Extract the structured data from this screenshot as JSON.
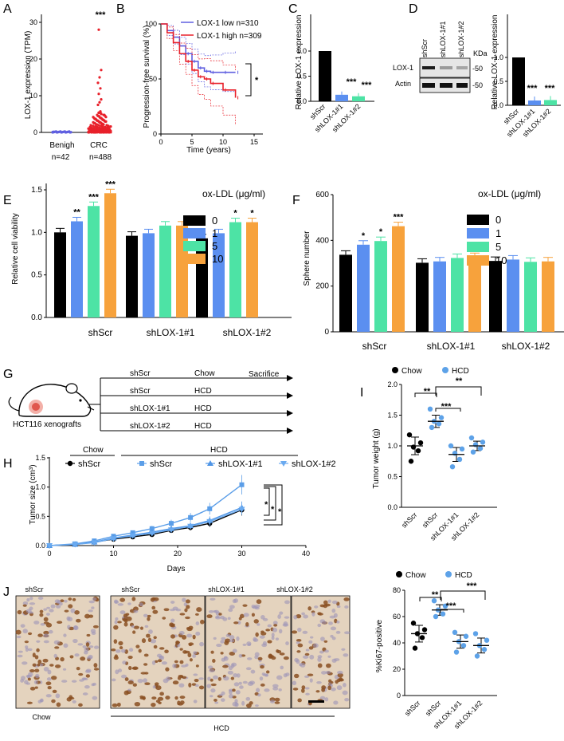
{
  "panels": {
    "A": "A",
    "B": "B",
    "C": "C",
    "D": "D",
    "E": "E",
    "F": "F",
    "G": "G",
    "H": "H",
    "I": "I",
    "J": "J"
  },
  "colors": {
    "black": "#000000",
    "blue": "#5b8ff0",
    "green": "#4de3a5",
    "orange": "#f7a23c",
    "red": "#e8202a",
    "km_blue": "#5f5fe0",
    "dot_blue": "#5da2e8"
  },
  "panelA": {
    "ylabel": "LOX-1 expression (TPM)",
    "yticks": [
      "0",
      "10",
      "20",
      "30"
    ],
    "groups": [
      "Benigh",
      "CRC"
    ],
    "ns": [
      "n=42",
      "n=488"
    ],
    "sig": "***"
  },
  "panelB": {
    "ylabel": "Progression-free survival (%)",
    "xlabel": "Time (years)",
    "xticks": [
      "0",
      "5",
      "10",
      "15"
    ],
    "yticks": [
      "0",
      "50",
      "100"
    ],
    "legend": [
      "LOX-1 low n=310",
      "LOX-1 high n=309"
    ],
    "sig": "*"
  },
  "panelC": {
    "ylabel": "Relative LOX-1 expression",
    "yticks": [
      "0.0",
      "0.5",
      "1.0"
    ],
    "categories": [
      "shScr",
      "shLOX-1#1",
      "shLOX-1#2"
    ],
    "sigs": [
      "***",
      "***"
    ]
  },
  "panelD": {
    "lanes": [
      "shScr",
      "shLOX-1#1",
      "shLOX-1#2"
    ],
    "kda": "KDa",
    "bands": [
      "LOX-1",
      "Actin"
    ],
    "markers": [
      "-50",
      "-50"
    ],
    "ylabel": "Relative LOX-1 expression",
    "yticks": [
      "0.0",
      "0.5",
      "1.0"
    ],
    "sigs": [
      "***",
      "***"
    ]
  },
  "panelE": {
    "legend_title": "ox-LDL (μg/ml)",
    "legend": [
      "0",
      "1",
      "5",
      "10"
    ],
    "ylabel": "Relative cell viability",
    "yticks": [
      "0.0",
      "0.5",
      "1.0",
      "1.5"
    ],
    "groups": [
      "shScr",
      "shLOX-1#1",
      "shLOX-1#2"
    ]
  },
  "panelF": {
    "legend_title": "ox-LDL (μg/ml)",
    "legend": [
      "0",
      "1",
      "5",
      "10"
    ],
    "ylabel": "Sphere number",
    "yticks": [
      "0",
      "200",
      "400",
      "600"
    ],
    "groups": [
      "shScr",
      "shLOX-1#1",
      "shLOX-1#2"
    ]
  },
  "panelG": {
    "model": "HCT116 xenografts",
    "rows": [
      [
        "shScr",
        "Chow"
      ],
      [
        "shScr",
        "HCD"
      ],
      [
        "shLOX-1#1",
        "HCD"
      ],
      [
        "shLOX-1#2",
        "HCD"
      ]
    ],
    "end": "Sacrifice"
  },
  "panelH": {
    "ylabel": "Tumor size (cm³)",
    "xlabel": "Days",
    "xticks": [
      "0",
      "10",
      "20",
      "30",
      "40"
    ],
    "yticks": [
      "0.0",
      "0.5",
      "1.0",
      "1.5"
    ],
    "diet_chow": "Chow",
    "diet_hcd": "HCD",
    "legend": [
      "shScr",
      "shScr",
      "shLOX-1#1",
      "shLOX-1#2"
    ],
    "sigs": [
      "*",
      "*",
      "*"
    ]
  },
  "panelI": {
    "legend": [
      "Chow",
      "HCD"
    ],
    "ylabel": "Tumor weight (g)",
    "yticks": [
      "0.0",
      "0.5",
      "1.0",
      "1.5",
      "2.0"
    ],
    "categories": [
      "shScr",
      "shScr",
      "shLOX-1#1",
      "shLOX-1#2"
    ],
    "sigs": [
      "**",
      "***",
      "**"
    ]
  },
  "panelJ": {
    "columns": [
      "shScr",
      "shScr",
      "shLOX-1#1",
      "shLOX-1#2"
    ],
    "diet_chow": "Chow",
    "diet_hcd": "HCD"
  },
  "panelK": {
    "legend": [
      "Chow",
      "HCD"
    ],
    "ylabel": "%Ki67-positive",
    "yticks": [
      "0",
      "20",
      "40",
      "60",
      "80"
    ],
    "categories": [
      "shScr",
      "shScr",
      "shLOX-1#1",
      "shLOX-1#2"
    ],
    "sigs": [
      "**",
      "***",
      "***"
    ]
  },
  "chart_data": [
    {
      "id": "A",
      "type": "scatter",
      "title": "",
      "ylabel": "LOX-1 expression (TPM)",
      "categories": [
        "Benigh",
        "CRC"
      ],
      "ylim": [
        0,
        30
      ],
      "series": [
        {
          "name": "Benigh",
          "summary": "values near 0, n=42"
        },
        {
          "name": "CRC",
          "summary": "mostly 0-5, max ~28, n=488"
        }
      ]
    },
    {
      "id": "B",
      "type": "line",
      "ylabel": "Progression-free survival (%)",
      "xlabel": "Time (years)",
      "xlim": [
        0,
        15
      ],
      "ylim": [
        0,
        100
      ],
      "series": [
        {
          "name": "LOX-1 low n=310",
          "x": [
            0,
            1,
            2,
            3,
            4,
            5,
            6,
            7,
            8,
            10,
            12
          ],
          "y": [
            100,
            94,
            88,
            80,
            73,
            66,
            60,
            57,
            56,
            56,
            56
          ]
        },
        {
          "name": "LOX-1 high n=309",
          "x": [
            0,
            1,
            2,
            3,
            4,
            5,
            6,
            7,
            8,
            10,
            12
          ],
          "y": [
            100,
            92,
            83,
            73,
            66,
            58,
            52,
            50,
            46,
            40,
            33
          ]
        }
      ]
    },
    {
      "id": "C",
      "type": "bar",
      "ylabel": "Relative LOX-1 expression",
      "categories": [
        "shScr",
        "shLOX-1#1",
        "shLOX-1#2"
      ],
      "values": [
        1.0,
        0.13,
        0.1
      ],
      "ylim": [
        0,
        1.3
      ]
    },
    {
      "id": "D",
      "type": "bar",
      "ylabel": "Relative LOX-1 expression",
      "categories": [
        "shScr",
        "shLOX-1#1",
        "shLOX-1#2"
      ],
      "values": [
        1.0,
        0.1,
        0.11
      ],
      "ylim": [
        0,
        1.3
      ]
    },
    {
      "id": "E",
      "type": "bar",
      "ylabel": "Relative cell viability",
      "categories": [
        "shScr",
        "shLOX-1#1",
        "shLOX-1#2"
      ],
      "ylim": [
        0,
        1.5
      ],
      "series": [
        {
          "name": "0",
          "values": [
            1.0,
            0.96,
            0.93
          ]
        },
        {
          "name": "1",
          "values": [
            1.13,
            0.99,
            0.99
          ]
        },
        {
          "name": "5",
          "values": [
            1.31,
            1.08,
            1.12
          ]
        },
        {
          "name": "10",
          "values": [
            1.46,
            1.08,
            1.12
          ]
        }
      ]
    },
    {
      "id": "F",
      "type": "bar",
      "ylabel": "Sphere number",
      "categories": [
        "shScr",
        "shLOX-1#1",
        "shLOX-1#2"
      ],
      "ylim": [
        0,
        600
      ],
      "series": [
        {
          "name": "0",
          "values": [
            337,
            302,
            310
          ]
        },
        {
          "name": "1",
          "values": [
            381,
            308,
            316
          ]
        },
        {
          "name": "5",
          "values": [
            397,
            323,
            306
          ]
        },
        {
          "name": "10",
          "values": [
            462,
            327,
            308
          ]
        }
      ]
    },
    {
      "id": "H",
      "type": "line",
      "ylabel": "Tumor size (cm³)",
      "xlabel": "Days",
      "xlim": [
        0,
        40
      ],
      "ylim": [
        0,
        1.5
      ],
      "x": [
        0,
        4,
        7,
        10,
        13,
        16,
        19,
        22,
        25,
        30
      ],
      "series": [
        {
          "name": "Chow shScr",
          "values": [
            0,
            0.02,
            0.06,
            0.11,
            0.15,
            0.19,
            0.26,
            0.31,
            0.38,
            0.61
          ]
        },
        {
          "name": "HCD shScr",
          "values": [
            0,
            0.03,
            0.08,
            0.16,
            0.22,
            0.29,
            0.38,
            0.48,
            0.63,
            1.04
          ]
        },
        {
          "name": "HCD shLOX-1#1",
          "values": [
            0,
            0.02,
            0.06,
            0.13,
            0.18,
            0.23,
            0.29,
            0.34,
            0.43,
            0.65
          ]
        },
        {
          "name": "HCD shLOX-1#2",
          "values": [
            0,
            0.02,
            0.05,
            0.12,
            0.17,
            0.21,
            0.27,
            0.33,
            0.41,
            0.62
          ]
        }
      ]
    },
    {
      "id": "I",
      "type": "scatter",
      "ylabel": "Tumor weight (g)",
      "categories": [
        "shScr",
        "shScr",
        "shLOX-1#1",
        "shLOX-1#2"
      ],
      "ylim": [
        0,
        2.0
      ],
      "means": [
        1.0,
        1.4,
        0.86,
        1.0
      ],
      "points": [
        [
          1.18,
          1.05,
          0.98,
          0.92,
          0.75
        ],
        [
          1.6,
          1.46,
          1.4,
          1.36,
          1.3
        ],
        [
          1.0,
          0.95,
          0.88,
          0.78,
          0.66
        ],
        [
          1.13,
          1.06,
          1.02,
          0.96,
          0.9
        ]
      ]
    },
    {
      "id": "K",
      "type": "scatter",
      "ylabel": "%Ki67-positive",
      "categories": [
        "shScr",
        "shScr",
        "shLOX-1#1",
        "shLOX-1#2"
      ],
      "ylim": [
        0,
        80
      ],
      "means": [
        47,
        65,
        41,
        38
      ],
      "points": [
        [
          55,
          50,
          47,
          44,
          36
        ],
        [
          72,
          68,
          65,
          62,
          60
        ],
        [
          48,
          45,
          41,
          38,
          33
        ],
        [
          47,
          42,
          38,
          35,
          30
        ]
      ]
    }
  ]
}
